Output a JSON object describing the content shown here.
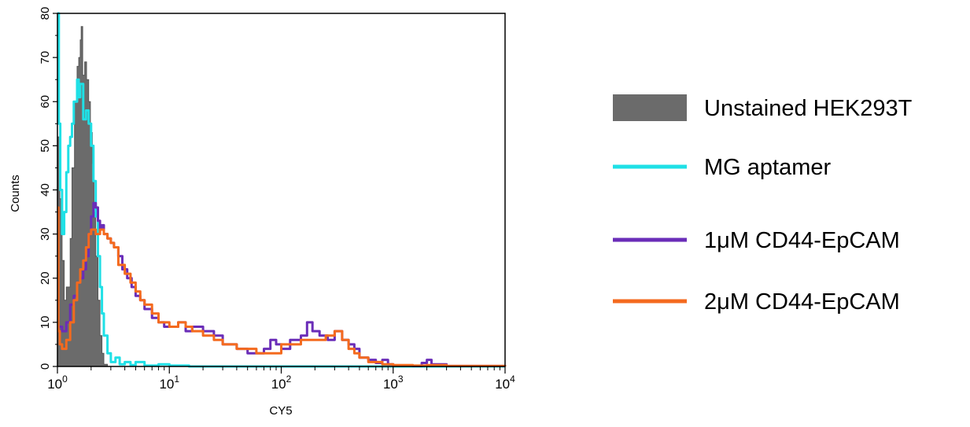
{
  "chart_data": {
    "type": "line",
    "xlabel": "CY5",
    "ylabel": "Counts",
    "xscale": "log",
    "xlim": [
      1,
      10000
    ],
    "ylim": [
      0,
      80
    ],
    "grid": false,
    "legend_position": "right",
    "y_ticks": [
      "0",
      "10",
      "20",
      "30",
      "40",
      "50",
      "60",
      "70",
      "80"
    ],
    "x_ticks": [
      {
        "base": "10",
        "exp": "0"
      },
      {
        "base": "10",
        "exp": "1"
      },
      {
        "base": "10",
        "exp": "2"
      },
      {
        "base": "10",
        "exp": "3"
      },
      {
        "base": "10",
        "exp": "4"
      }
    ],
    "series": [
      {
        "name": "Unstained HEK293T",
        "style": "filled",
        "color": "#6b6b6b",
        "points": [
          [
            1.0,
            52
          ],
          [
            1.05,
            38
          ],
          [
            1.1,
            24
          ],
          [
            1.15,
            15
          ],
          [
            1.2,
            18
          ],
          [
            1.3,
            29
          ],
          [
            1.35,
            45
          ],
          [
            1.42,
            60
          ],
          [
            1.5,
            68
          ],
          [
            1.55,
            70
          ],
          [
            1.6,
            74
          ],
          [
            1.63,
            77
          ],
          [
            1.68,
            66
          ],
          [
            1.75,
            69
          ],
          [
            1.82,
            65
          ],
          [
            1.9,
            60
          ],
          [
            1.97,
            53
          ],
          [
            2.05,
            46
          ],
          [
            2.12,
            35
          ],
          [
            2.2,
            25
          ],
          [
            2.3,
            15
          ],
          [
            2.4,
            7
          ],
          [
            2.5,
            3
          ],
          [
            2.6,
            0.5
          ],
          [
            2.8,
            0
          ]
        ]
      },
      {
        "name": "MG aptamer",
        "style": "line",
        "color": "#1fe0e6",
        "points": [
          [
            1.0,
            80
          ],
          [
            1.03,
            55
          ],
          [
            1.06,
            40
          ],
          [
            1.1,
            30
          ],
          [
            1.15,
            35
          ],
          [
            1.2,
            44
          ],
          [
            1.25,
            50
          ],
          [
            1.3,
            52
          ],
          [
            1.35,
            55
          ],
          [
            1.4,
            60
          ],
          [
            1.5,
            65
          ],
          [
            1.55,
            61
          ],
          [
            1.6,
            64
          ],
          [
            1.7,
            56
          ],
          [
            1.8,
            58
          ],
          [
            1.9,
            55
          ],
          [
            2.0,
            50
          ],
          [
            2.1,
            42
          ],
          [
            2.2,
            34
          ],
          [
            2.3,
            25
          ],
          [
            2.4,
            18
          ],
          [
            2.5,
            12
          ],
          [
            2.6,
            7
          ],
          [
            2.8,
            3
          ],
          [
            3.0,
            1
          ],
          [
            3.3,
            2
          ],
          [
            3.6,
            0.5
          ],
          [
            4.0,
            1
          ],
          [
            4.5,
            0.3
          ],
          [
            5.0,
            1
          ],
          [
            6.0,
            0.2
          ],
          [
            8.0,
            0.5
          ],
          [
            10,
            0.2
          ],
          [
            15,
            0
          ],
          [
            30,
            0
          ],
          [
            100,
            0
          ],
          [
            1000,
            0
          ],
          [
            10000,
            0
          ]
        ]
      },
      {
        "name": "1μM CD44-EpCAM",
        "style": "line",
        "color": "#6a2db8",
        "points": [
          [
            1.0,
            9
          ],
          [
            1.1,
            8
          ],
          [
            1.2,
            10
          ],
          [
            1.3,
            14
          ],
          [
            1.4,
            16
          ],
          [
            1.5,
            19
          ],
          [
            1.6,
            20
          ],
          [
            1.7,
            22
          ],
          [
            1.8,
            25
          ],
          [
            1.9,
            30
          ],
          [
            2.0,
            34
          ],
          [
            2.1,
            37
          ],
          [
            2.2,
            36
          ],
          [
            2.3,
            33
          ],
          [
            2.4,
            31
          ],
          [
            2.5,
            32
          ],
          [
            2.6,
            30
          ],
          [
            2.8,
            29
          ],
          [
            3.0,
            28
          ],
          [
            3.2,
            27
          ],
          [
            3.5,
            25
          ],
          [
            3.8,
            22
          ],
          [
            4.2,
            20
          ],
          [
            4.6,
            18
          ],
          [
            5.0,
            16
          ],
          [
            5.5,
            15
          ],
          [
            6.0,
            13
          ],
          [
            7.0,
            11
          ],
          [
            8.0,
            10
          ],
          [
            9.0,
            9
          ],
          [
            10,
            9
          ],
          [
            12,
            10
          ],
          [
            14,
            8
          ],
          [
            16,
            9
          ],
          [
            20,
            8
          ],
          [
            25,
            7
          ],
          [
            30,
            5
          ],
          [
            40,
            4
          ],
          [
            50,
            3
          ],
          [
            60,
            3
          ],
          [
            70,
            4
          ],
          [
            80,
            6
          ],
          [
            90,
            5
          ],
          [
            100,
            4
          ],
          [
            120,
            6
          ],
          [
            150,
            7
          ],
          [
            170,
            10
          ],
          [
            190,
            8
          ],
          [
            220,
            7
          ],
          [
            260,
            6
          ],
          [
            300,
            8
          ],
          [
            350,
            6
          ],
          [
            400,
            5
          ],
          [
            450,
            4
          ],
          [
            500,
            2
          ],
          [
            600,
            1.5
          ],
          [
            700,
            0.8
          ],
          [
            800,
            1.5
          ],
          [
            900,
            0.5
          ],
          [
            1000,
            0.2
          ],
          [
            1500,
            0.1
          ],
          [
            1800,
            0.8
          ],
          [
            2000,
            1.5
          ],
          [
            2200,
            0.5
          ],
          [
            3000,
            0.1
          ],
          [
            10000,
            0
          ]
        ]
      },
      {
        "name": "2μM CD44-EpCAM",
        "style": "line",
        "color": "#f46a1e",
        "points": [
          [
            1.0,
            36
          ],
          [
            1.02,
            8
          ],
          [
            1.05,
            5
          ],
          [
            1.1,
            4
          ],
          [
            1.2,
            6
          ],
          [
            1.3,
            10
          ],
          [
            1.4,
            15
          ],
          [
            1.5,
            19
          ],
          [
            1.6,
            22
          ],
          [
            1.7,
            24
          ],
          [
            1.8,
            27
          ],
          [
            1.9,
            30
          ],
          [
            2.0,
            31
          ],
          [
            2.2,
            30
          ],
          [
            2.4,
            31
          ],
          [
            2.6,
            30
          ],
          [
            2.8,
            29
          ],
          [
            3.0,
            28
          ],
          [
            3.2,
            27
          ],
          [
            3.5,
            23
          ],
          [
            4.0,
            21
          ],
          [
            4.5,
            19
          ],
          [
            5.0,
            17
          ],
          [
            5.5,
            15
          ],
          [
            6.0,
            14
          ],
          [
            7.0,
            12
          ],
          [
            8.0,
            10
          ],
          [
            10,
            9
          ],
          [
            12,
            10
          ],
          [
            14,
            9
          ],
          [
            16,
            8
          ],
          [
            20,
            7
          ],
          [
            25,
            6
          ],
          [
            30,
            5
          ],
          [
            40,
            4
          ],
          [
            50,
            4
          ],
          [
            60,
            3
          ],
          [
            80,
            3
          ],
          [
            100,
            5
          ],
          [
            120,
            5
          ],
          [
            150,
            6
          ],
          [
            200,
            6
          ],
          [
            250,
            7
          ],
          [
            300,
            8
          ],
          [
            350,
            6
          ],
          [
            400,
            4
          ],
          [
            450,
            3
          ],
          [
            500,
            2
          ],
          [
            600,
            1
          ],
          [
            700,
            1
          ],
          [
            800,
            0.5
          ],
          [
            1000,
            0.3
          ],
          [
            1500,
            0.2
          ],
          [
            2000,
            0.3
          ],
          [
            3000,
            0.1
          ],
          [
            10000,
            0
          ]
        ]
      }
    ]
  }
}
